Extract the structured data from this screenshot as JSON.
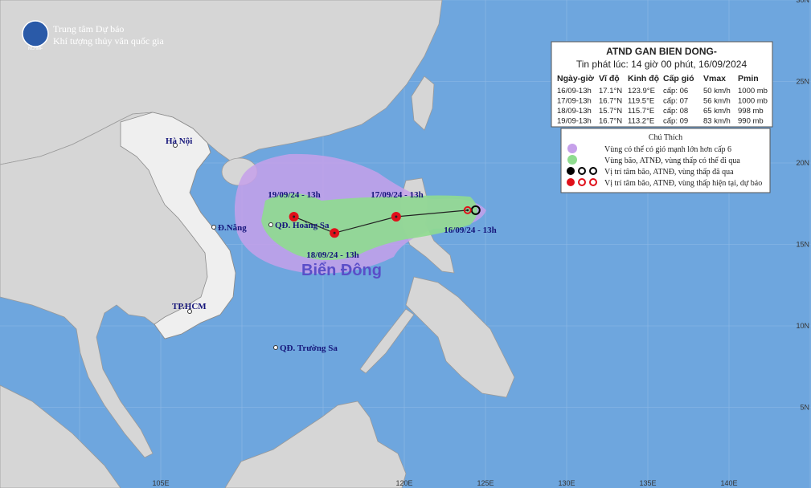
{
  "header": {
    "agency_line1": "Trung tâm Dự báo",
    "agency_line2": "Khí tượng thủy văn quốc gia",
    "logo": "NCHMF"
  },
  "info": {
    "title": "ATND GAN BIEN DONG-",
    "issued": "Tin phát lúc: 14 giờ 00 phút, 16/09/2024",
    "columns": [
      "Ngày-giờ",
      "Vĩ độ",
      "Kinh độ",
      "Cấp gió",
      "Vmax",
      "Pmin"
    ],
    "rows": [
      [
        "16/09-13h",
        "17.1°N",
        "123.9°E",
        "cấp: 06",
        "50 km/h",
        "1000 mb"
      ],
      [
        "17/09-13h",
        "16.7°N",
        "119.5°E",
        "cấp: 07",
        "56 km/h",
        "1000 mb"
      ],
      [
        "18/09-13h",
        "15.7°N",
        "115.7°E",
        "cấp: 08",
        "65 km/h",
        "998 mb"
      ],
      [
        "19/09-13h",
        "16.7°N",
        "113.2°E",
        "cấp: 09",
        "83 km/h",
        "990 mb"
      ]
    ]
  },
  "legend": {
    "title": "Chú Thích",
    "items": [
      "Vùng có thể có gió mạnh lớn hơn cấp 6",
      "Vùng bão, ATNĐ, vùng thấp có thể đi qua",
      "Vị trí tâm bão, ATNĐ, vùng thấp đã qua",
      "Vị trí tâm bão, ATNĐ, vùng thấp hiện tại, dự báo"
    ]
  },
  "places": [
    "Hà Nội",
    "Đ.Nẵng",
    "TP.HCM",
    "QĐ. Hoàng Sa",
    "QĐ. Trường Sa"
  ],
  "sea_label": "Biển Đông",
  "track_labels": [
    "16/09/24 - 13h",
    "17/09/24 - 13h",
    "18/09/24 - 13h",
    "19/09/24 - 13h"
  ],
  "lon_labels": [
    "105E",
    "120E",
    "125E",
    "130E",
    "135E",
    "140E"
  ],
  "lat_labels": [
    "30N",
    "25N",
    "20N",
    "15N",
    "10N",
    "5N"
  ]
}
